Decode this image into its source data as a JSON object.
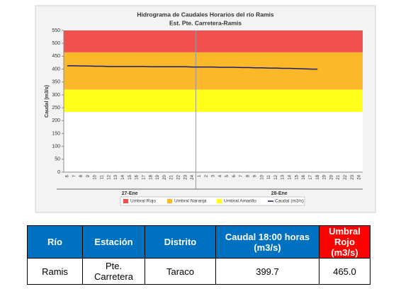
{
  "chart_data": {
    "type": "line",
    "title": "Hidrograma de Caudales Horarios del río Ramis",
    "subtitle": "Est. Pte. Carretera-Ramis",
    "y_label": "Caudal (m3/s)",
    "groups": [
      {
        "name": "27-Ene",
        "categories": [
          "6",
          "7",
          "8",
          "9",
          "10",
          "11",
          "12",
          "13",
          "14",
          "15",
          "16",
          "17",
          "18",
          "19",
          "20",
          "21",
          "22",
          "23",
          "24"
        ]
      },
      {
        "name": "28-Ene",
        "categories": [
          "1",
          "2",
          "3",
          "4",
          "5",
          "6",
          "7",
          "8",
          "9",
          "10",
          "11",
          "12",
          "13",
          "14",
          "15",
          "16",
          "17",
          "18",
          "19",
          "20",
          "21",
          "22",
          "23",
          "24"
        ]
      }
    ],
    "bands": [
      {
        "name": "Umbral Rojo",
        "color": "#f24f4f",
        "from": 465,
        "to": 550
      },
      {
        "name": "Umbral Naranja",
        "color": "#fbb92a",
        "from": 320,
        "to": 465
      },
      {
        "name": "Umbral Amarillo",
        "color": "#ffff1a",
        "from": 234,
        "to": 320
      }
    ],
    "series": [
      {
        "name": "Caudal (m3/s)",
        "color": "#1c1c6e",
        "values": [
          413,
          413,
          412,
          412,
          411,
          411,
          410,
          410,
          410,
          410,
          410,
          410,
          409,
          409,
          409,
          409,
          409,
          409,
          408,
          408,
          408,
          408,
          407,
          407,
          407,
          406,
          406,
          405,
          405,
          404,
          404,
          403,
          403,
          402,
          401,
          400,
          399.7,
          null,
          null,
          null,
          null,
          null,
          null
        ]
      }
    ],
    "ylim": [
      0,
      550
    ],
    "yticks": [
      0,
      50,
      100,
      150,
      200,
      250,
      300,
      350,
      400,
      450,
      500,
      550
    ],
    "grid": false,
    "legend": "bottom"
  },
  "table": {
    "headers": [
      "Río",
      "Estación",
      "Distrito",
      "Caudal 18:00 horas (m3/s)",
      "Umbral Rojo (m3/s)"
    ],
    "rows": [
      [
        "Ramis",
        "Pte. Carretera",
        "Taraco",
        "399.7",
        "465.0"
      ]
    ]
  }
}
